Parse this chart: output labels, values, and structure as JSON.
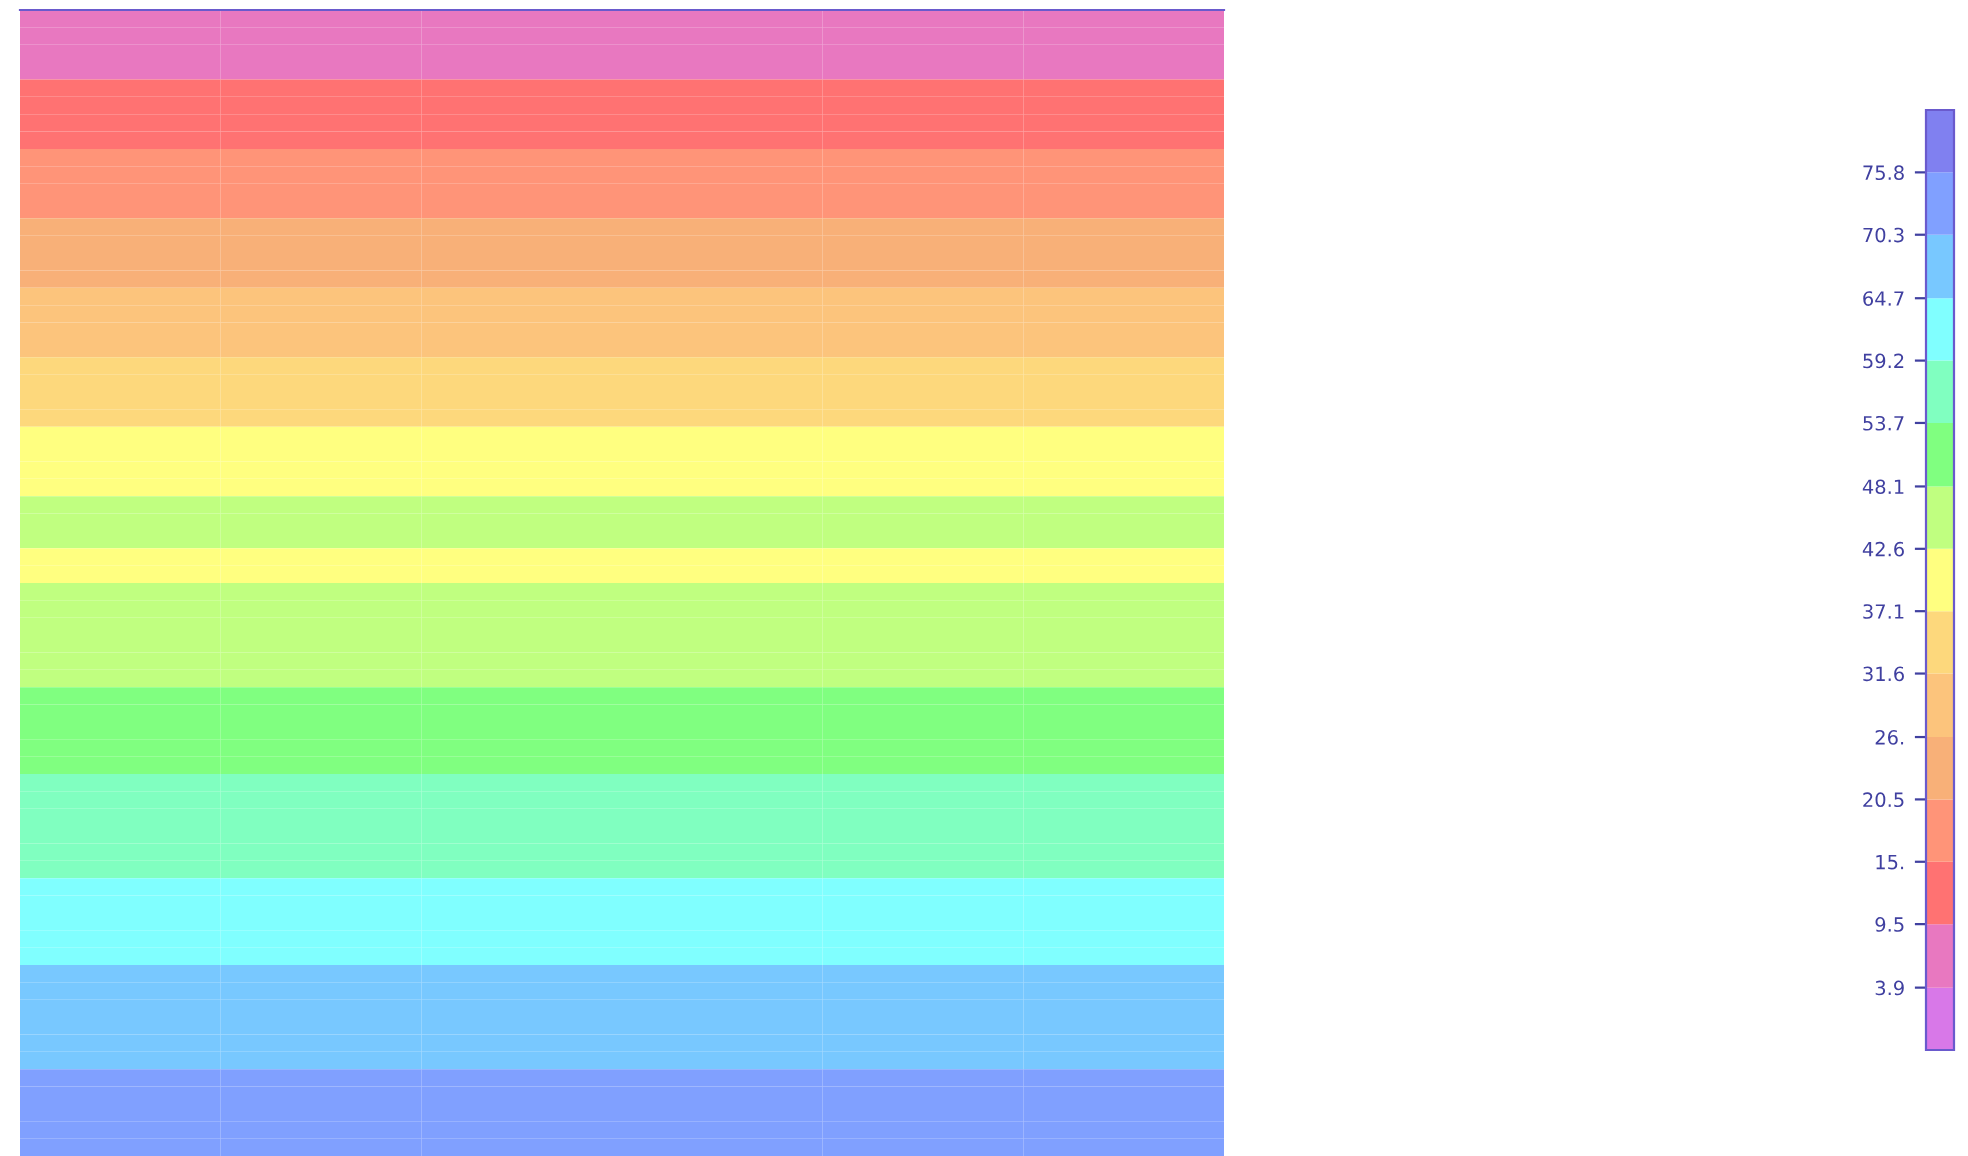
{
  "chart_data": {
    "type": "heatmap",
    "categories": [
      null,
      null,
      null,
      null,
      null,
      null
    ],
    "y_categories": [
      null,
      null,
      null,
      null,
      null,
      null,
      null,
      null,
      null,
      null,
      null,
      null,
      null,
      null,
      null,
      null,
      null,
      null,
      null,
      null,
      null,
      null,
      null,
      null,
      null,
      null,
      null,
      null,
      null,
      null,
      null,
      null,
      null,
      null,
      null,
      null,
      null,
      null,
      null,
      null,
      null,
      null,
      null,
      null,
      null,
      null,
      null,
      null,
      null,
      null,
      null,
      null,
      null,
      null,
      null,
      null,
      null,
      null,
      null,
      null,
      null,
      null,
      null,
      null,
      null,
      null
    ],
    "cells": [
      [
        6.7,
        6.7,
        6.7,
        6.7,
        6.7,
        6.7
      ],
      [
        6.7,
        6.7,
        6.7,
        6.7,
        6.7,
        6.7
      ],
      [
        6.7,
        6.7,
        6.7,
        6.7,
        6.7,
        6.7
      ],
      [
        6.7,
        6.7,
        6.7,
        6.7,
        6.7,
        6.7
      ],
      [
        12.2,
        12.2,
        12.2,
        12.2,
        12.2,
        12.2
      ],
      [
        12.2,
        12.2,
        12.2,
        12.2,
        12.2,
        12.2
      ],
      [
        12.2,
        12.2,
        12.2,
        12.2,
        12.2,
        12.2
      ],
      [
        12.2,
        12.2,
        12.2,
        12.2,
        12.2,
        12.2
      ],
      [
        17.8,
        17.8,
        17.8,
        17.8,
        17.8,
        17.8
      ],
      [
        17.8,
        17.8,
        17.8,
        17.8,
        17.8,
        17.8
      ],
      [
        17.8,
        17.8,
        17.8,
        17.8,
        17.8,
        17.8
      ],
      [
        17.8,
        17.8,
        17.8,
        17.8,
        17.8,
        17.8
      ],
      [
        23.3,
        23.3,
        23.3,
        23.3,
        23.3,
        23.3
      ],
      [
        23.3,
        23.3,
        23.3,
        23.3,
        23.3,
        23.3
      ],
      [
        23.3,
        23.3,
        23.3,
        23.3,
        23.3,
        23.3
      ],
      [
        23.3,
        23.3,
        23.3,
        23.3,
        23.3,
        23.3
      ],
      [
        28.8,
        28.8,
        28.8,
        28.8,
        28.8,
        28.8
      ],
      [
        28.8,
        28.8,
        28.8,
        28.8,
        28.8,
        28.8
      ],
      [
        28.8,
        28.8,
        28.8,
        28.8,
        28.8,
        28.8
      ],
      [
        28.8,
        28.8,
        28.8,
        28.8,
        28.8,
        28.8
      ],
      [
        34.3,
        34.3,
        34.3,
        34.3,
        34.3,
        34.3
      ],
      [
        34.3,
        34.3,
        34.3,
        34.3,
        34.3,
        34.3
      ],
      [
        34.3,
        34.3,
        34.3,
        34.3,
        34.3,
        34.3
      ],
      [
        34.3,
        34.3,
        34.3,
        34.3,
        34.3,
        34.3
      ],
      [
        39.8,
        39.8,
        39.8,
        39.8,
        39.8,
        39.8
      ],
      [
        39.8,
        39.8,
        39.8,
        39.8,
        39.8,
        39.8
      ],
      [
        39.8,
        39.8,
        39.8,
        39.8,
        39.8,
        39.8
      ],
      [
        39.8,
        39.8,
        39.8,
        39.8,
        39.8,
        39.8
      ],
      [
        45.3,
        45.3,
        45.3,
        45.3,
        45.3,
        45.3
      ],
      [
        45.3,
        45.3,
        45.3,
        45.3,
        45.3,
        45.3
      ],
      [
        45.3,
        45.3,
        45.3,
        45.3,
        45.3,
        45.3
      ],
      [
        39.8,
        39.8,
        39.8,
        39.8,
        39.8,
        39.8
      ],
      [
        39.8,
        39.8,
        39.8,
        39.8,
        39.8,
        39.8
      ],
      [
        45.3,
        45.3,
        45.3,
        45.3,
        45.3,
        45.3
      ],
      [
        45.3,
        45.3,
        45.3,
        45.3,
        45.3,
        45.3
      ],
      [
        45.3,
        45.3,
        45.3,
        45.3,
        45.3,
        45.3
      ],
      [
        45.3,
        45.3,
        45.3,
        45.3,
        45.3,
        45.3
      ],
      [
        45.3,
        45.3,
        45.3,
        45.3,
        45.3,
        45.3
      ],
      [
        45.3,
        45.3,
        45.3,
        45.3,
        45.3,
        45.3
      ],
      [
        50.9,
        50.9,
        50.9,
        50.9,
        50.9,
        50.9
      ],
      [
        50.9,
        50.9,
        50.9,
        50.9,
        50.9,
        50.9
      ],
      [
        50.9,
        50.9,
        50.9,
        50.9,
        50.9,
        50.9
      ],
      [
        50.9,
        50.9,
        50.9,
        50.9,
        50.9,
        50.9
      ],
      [
        50.9,
        50.9,
        50.9,
        50.9,
        50.9,
        50.9
      ],
      [
        56.4,
        56.4,
        56.4,
        56.4,
        56.4,
        56.4
      ],
      [
        56.4,
        56.4,
        56.4,
        56.4,
        56.4,
        56.4
      ],
      [
        56.4,
        56.4,
        56.4,
        56.4,
        56.4,
        56.4
      ],
      [
        56.4,
        56.4,
        56.4,
        56.4,
        56.4,
        56.4
      ],
      [
        56.4,
        56.4,
        56.4,
        56.4,
        56.4,
        56.4
      ],
      [
        56.4,
        56.4,
        56.4,
        56.4,
        56.4,
        56.4
      ],
      [
        62.0,
        62.0,
        62.0,
        62.0,
        62.0,
        62.0
      ],
      [
        62.0,
        62.0,
        62.0,
        62.0,
        62.0,
        62.0
      ],
      [
        62.0,
        62.0,
        62.0,
        62.0,
        62.0,
        62.0
      ],
      [
        62.0,
        62.0,
        62.0,
        62.0,
        62.0,
        62.0
      ],
      [
        62.0,
        62.0,
        62.0,
        62.0,
        62.0,
        62.0
      ],
      [
        67.5,
        67.5,
        67.5,
        67.5,
        67.5,
        67.5
      ],
      [
        67.5,
        67.5,
        67.5,
        67.5,
        67.5,
        67.5
      ],
      [
        67.5,
        67.5,
        67.5,
        67.5,
        67.5,
        67.5
      ],
      [
        67.5,
        67.5,
        67.5,
        67.5,
        67.5,
        67.5
      ],
      [
        67.5,
        67.5,
        67.5,
        67.5,
        67.5,
        67.5
      ],
      [
        67.5,
        67.5,
        67.5,
        67.5,
        67.5,
        67.5
      ],
      [
        73.0,
        73.0,
        73.0,
        73.0,
        73.0,
        73.0
      ],
      [
        73.0,
        73.0,
        73.0,
        73.0,
        73.0,
        73.0
      ],
      [
        73.0,
        73.0,
        73.0,
        73.0,
        73.0,
        73.0
      ],
      [
        73.0,
        73.0,
        73.0,
        73.0,
        73.0,
        73.0
      ],
      [
        73.0,
        73.0,
        73.0,
        73.0,
        73.0,
        73.0
      ]
    ],
    "clim": [
      -1.6,
      81.3
    ],
    "cticks": [
      3.9,
      9.5,
      {
        "value": 15,
        "label": "15."
      },
      20.5,
      {
        "value": 26,
        "label": "26."
      },
      31.6,
      37.1,
      42.6,
      48.1,
      53.7,
      59.2,
      64.7,
      70.3,
      75.8
    ],
    "colors": [
      "#d878e8",
      "#e878c0",
      "#ff7272",
      "#ff9478",
      "#f8b078",
      "#fcc47c",
      "#fdd87c",
      "#ffff80",
      "#c0ff80",
      "#80ff80",
      "#80ffc0",
      "#80ffff",
      "#78c8ff",
      "#80a0ff",
      "#8080f0"
    ]
  }
}
